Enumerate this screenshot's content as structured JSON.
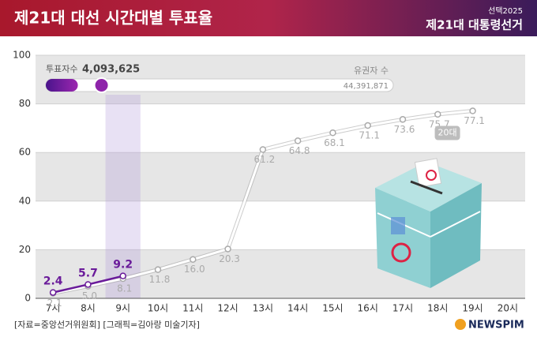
{
  "chart_data": {
    "type": "line",
    "title": "제21대 대선 시간대별 투표율",
    "brand_top": "선택2025",
    "brand": "제21대 대통령선거",
    "categories": [
      "7시",
      "8시",
      "9시",
      "10시",
      "11시",
      "12시",
      "13시",
      "14시",
      "15시",
      "16시",
      "17시",
      "18시",
      "19시",
      "20시"
    ],
    "series": [
      {
        "color": "#6a1b9a",
        "values": [
          2.4,
          5.7,
          9.2,
          null,
          null,
          null,
          null,
          null,
          null,
          null,
          null,
          null,
          null,
          null
        ]
      },
      {
        "name": "20대",
        "color": "#c8c8c8",
        "values": [
          2.1,
          5.0,
          8.1,
          11.8,
          16.0,
          20.3,
          61.2,
          64.8,
          68.1,
          71.1,
          73.6,
          75.7,
          77.1,
          null
        ],
        "value_labels": [
          "2.1",
          "5.0",
          "8.1",
          "11.8",
          "16.0",
          "20.3",
          "61.2",
          "64.8",
          "68.1",
          "71.1",
          "73.6",
          "75.7",
          "77.1",
          null
        ]
      }
    ],
    "ylim": [
      0,
      100
    ],
    "yticks": [
      0,
      20,
      40,
      60,
      80,
      100
    ],
    "grid": true,
    "progress": {
      "label": "투표자수",
      "value": 4093625,
      "value_label": "4,093,625",
      "total_label": "유권자 수",
      "total": 44391871,
      "total_value_label": "44,391,871"
    },
    "source": "[자료=중앙선거위원회] [그래픽=김아랑 미술기자]",
    "logo": "NEWSPIM"
  }
}
